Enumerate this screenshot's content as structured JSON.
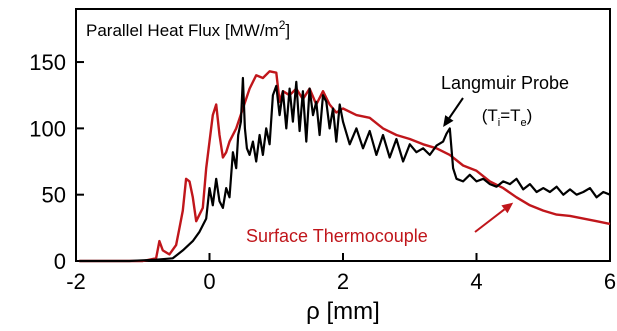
{
  "chart_data": {
    "type": "line",
    "title": "Parallel Heat Flux [MW/m²]",
    "title_parts": {
      "main": "Parallel Heat Flux [MW/m",
      "sup": "2",
      "close": "]"
    },
    "xlabel": "ρ [mm]",
    "ylabel": "",
    "xlim": [
      -2,
      6
    ],
    "ylim": [
      0,
      190
    ],
    "x_ticks": [
      -2,
      0,
      2,
      4,
      6
    ],
    "x_tick_labels": [
      "-2",
      "0",
      "2",
      "4",
      "6"
    ],
    "y_ticks": [
      0,
      50,
      100,
      150
    ],
    "y_tick_labels": [
      "0",
      "50",
      "100",
      "150"
    ],
    "grid": false,
    "legend": "none",
    "colors": {
      "langmuir": "#000000",
      "thermocouple": "#c0161b"
    },
    "annotations": {
      "langmuir": {
        "text": "Langmuir Probe",
        "sub_open": "(T",
        "sub_i": "i",
        "sub_eq": "=T",
        "sub_e": "e",
        "sub_close": ")",
        "color": "#000000",
        "arrow_to": [
          3.5,
          101
        ]
      },
      "thermocouple": {
        "text": "Surface Thermocouple",
        "color": "#c0161b",
        "arrow_to": [
          4.55,
          44
        ]
      }
    },
    "series": [
      {
        "id": "langmuir",
        "color": "#000000",
        "x": [
          -1.95,
          -1.6,
          -1.2,
          -0.8,
          -0.55,
          -0.4,
          -0.25,
          -0.15,
          -0.05,
          0.0,
          0.05,
          0.1,
          0.15,
          0.2,
          0.25,
          0.3,
          0.35,
          0.4,
          0.43,
          0.47,
          0.5,
          0.53,
          0.56,
          0.6,
          0.65,
          0.7,
          0.75,
          0.8,
          0.85,
          0.9,
          0.95,
          1.0,
          1.05,
          1.1,
          1.15,
          1.2,
          1.25,
          1.3,
          1.35,
          1.4,
          1.45,
          1.5,
          1.55,
          1.6,
          1.65,
          1.7,
          1.75,
          1.8,
          1.85,
          1.9,
          1.95,
          2.0,
          2.1,
          2.2,
          2.3,
          2.4,
          2.5,
          2.6,
          2.7,
          2.8,
          2.9,
          3.0,
          3.1,
          3.2,
          3.3,
          3.4,
          3.5,
          3.55,
          3.6,
          3.65,
          3.7,
          3.8,
          3.9,
          4.0,
          4.1,
          4.2,
          4.3,
          4.4,
          4.5,
          4.6,
          4.7,
          4.8,
          4.9,
          5.0,
          5.1,
          5.2,
          5.3,
          5.4,
          5.5,
          5.6,
          5.7,
          5.8,
          5.9,
          6.0
        ],
        "y": [
          0,
          0,
          0,
          1,
          2,
          8,
          15,
          22,
          32,
          55,
          42,
          62,
          45,
          40,
          55,
          48,
          82,
          70,
          95,
          105,
          138,
          100,
          85,
          80,
          90,
          75,
          95,
          80,
          100,
          88,
          125,
          132,
          110,
          128,
          100,
          130,
          105,
          135,
          98,
          128,
          90,
          130,
          110,
          120,
          95,
          125,
          120,
          100,
          115,
          90,
          118,
          105,
          88,
          100,
          85,
          98,
          80,
          95,
          78,
          92,
          75,
          88,
          82,
          85,
          80,
          87,
          90,
          96,
          100,
          70,
          62,
          60,
          65,
          60,
          62,
          58,
          56,
          60,
          58,
          62,
          54,
          58,
          52,
          55,
          52,
          56,
          50,
          54,
          50,
          52,
          55,
          48,
          52,
          50
        ]
      },
      {
        "id": "thermocouple",
        "color": "#c0161b",
        "x": [
          -1.95,
          -1.5,
          -1.0,
          -0.8,
          -0.75,
          -0.7,
          -0.6,
          -0.5,
          -0.45,
          -0.4,
          -0.35,
          -0.3,
          -0.25,
          -0.2,
          -0.1,
          -0.05,
          0.0,
          0.05,
          0.1,
          0.15,
          0.2,
          0.25,
          0.3,
          0.4,
          0.5,
          0.6,
          0.7,
          0.8,
          0.9,
          1.0,
          1.05,
          1.1,
          1.2,
          1.3,
          1.4,
          1.5,
          1.6,
          1.7,
          1.8,
          1.9,
          2.0,
          2.2,
          2.4,
          2.6,
          2.8,
          3.0,
          3.2,
          3.4,
          3.6,
          3.8,
          4.0,
          4.2,
          4.4,
          4.6,
          4.8,
          5.0,
          5.2,
          5.4,
          5.6,
          5.8,
          6.0
        ],
        "y": [
          0,
          0,
          0,
          2,
          15,
          8,
          5,
          12,
          25,
          38,
          62,
          60,
          48,
          30,
          40,
          70,
          90,
          110,
          118,
          95,
          78,
          82,
          90,
          100,
          115,
          130,
          140,
          138,
          143,
          142,
          120,
          128,
          125,
          130,
          122,
          130,
          118,
          128,
          118,
          112,
          115,
          110,
          108,
          100,
          95,
          92,
          88,
          85,
          80,
          72,
          68,
          60,
          55,
          48,
          42,
          38,
          35,
          34,
          32,
          30,
          28
        ]
      }
    ]
  }
}
